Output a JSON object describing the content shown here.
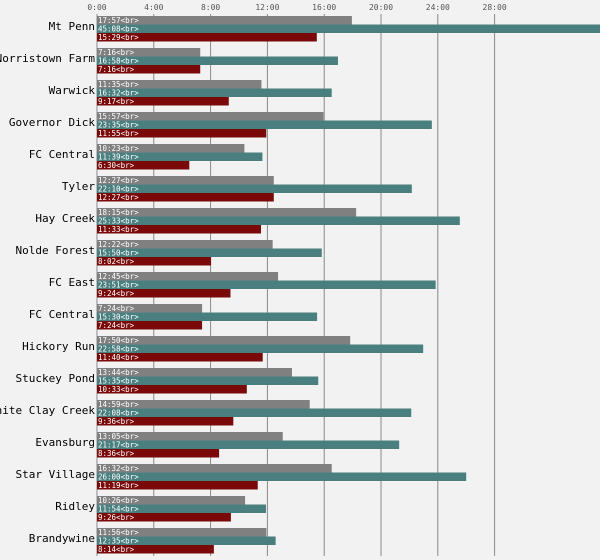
{
  "chart_data": {
    "type": "bar",
    "orientation": "horizontal",
    "x_axis_position": "top",
    "grid": true,
    "legend": "none",
    "xlim_minutes": [
      0,
      32
    ],
    "x_tick_labels": [
      "0:00",
      "4:00",
      "8:00",
      "12:00",
      "16:00",
      "20:00",
      "24:00",
      "28:00"
    ],
    "x_tick_values_minutes": [
      0,
      4,
      8,
      12,
      16,
      20,
      24,
      28
    ],
    "categories": [
      "Mt Penn",
      "Norristown Farm",
      "Warwick",
      "Governor Dick",
      "FC Central",
      "Tyler",
      "Hay Creek",
      "Nolde Forest",
      "FC East",
      "FC Central",
      "Hickory Run",
      "Stuckey Pond",
      "White Clay Creek",
      "Evansburg",
      "Star Village",
      "Ridley",
      "Brandywine"
    ],
    "series": [
      {
        "color": "#808080",
        "labels": [
          "17:57",
          "7:16",
          "11:35",
          "15:57",
          "10:23",
          "12:27",
          "18:15",
          "12:22",
          "12:45",
          "7:24",
          "17:50",
          "13:44",
          "14:59",
          "13:05",
          "16:32",
          "10:26",
          "11:56"
        ],
        "values": [
          17.95,
          7.27,
          11.58,
          15.95,
          10.38,
          12.45,
          18.25,
          12.37,
          12.75,
          7.4,
          17.83,
          13.73,
          14.98,
          13.08,
          16.53,
          10.43,
          11.93
        ]
      },
      {
        "color": "#4a7f7f",
        "labels": [
          "45:08",
          "16:58",
          "16:32",
          "23:35",
          "11:39",
          "22:10",
          "25:33",
          "15:50",
          "23:51",
          "15:30",
          "22:58",
          "15:35",
          "22:08",
          "21:17",
          "26:00",
          "11:54",
          "12:35"
        ],
        "values": [
          45.13,
          16.97,
          16.53,
          23.58,
          11.65,
          22.17,
          25.55,
          15.83,
          23.85,
          15.5,
          22.97,
          15.58,
          22.13,
          21.28,
          26.0,
          11.9,
          12.58
        ]
      },
      {
        "color": "#7a0a0a",
        "labels": [
          "15:29",
          "7:16",
          "9:17",
          "11:55",
          "6:30",
          "12:27",
          "11:33",
          "8:02",
          "9:24",
          "7:24",
          "11:40",
          "10:33",
          "9:36",
          "8:36",
          "11:19",
          "9:26",
          "8:14"
        ],
        "values": [
          15.48,
          7.27,
          9.28,
          11.92,
          6.5,
          12.45,
          11.55,
          8.03,
          9.4,
          7.4,
          11.67,
          10.55,
          9.6,
          8.6,
          11.32,
          9.43,
          8.23
        ]
      }
    ],
    "label_suffix": "<br>"
  }
}
